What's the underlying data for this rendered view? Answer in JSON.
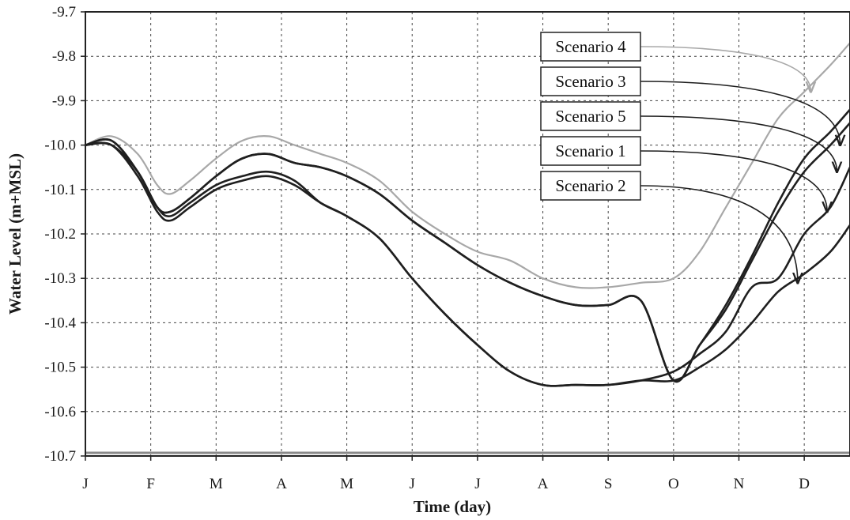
{
  "chart_data": {
    "type": "line",
    "xlabel": "Time (day)",
    "ylabel": "Water Level (m+MSL)",
    "x_categories": [
      "J",
      "F",
      "M",
      "A",
      "M",
      "J",
      "J",
      "A",
      "S",
      "O",
      "N",
      "D"
    ],
    "x_range": [
      0,
      11.7
    ],
    "ylim": [
      -10.7,
      -9.7
    ],
    "y_ticks": [
      "-9.7",
      "-9.8",
      "-9.9",
      "-10.0",
      "-10.1",
      "-10.2",
      "-10.3",
      "-10.4",
      "-10.5",
      "-10.6",
      "-10.7"
    ],
    "grid": true,
    "legend": "callout labels at top-right",
    "series": [
      {
        "name": "Scenario 4",
        "color": "#a8a8a8",
        "x": [
          0,
          0.4,
          0.8,
          1.1,
          1.3,
          1.6,
          2.0,
          2.4,
          2.8,
          3.2,
          3.6,
          4.0,
          4.5,
          5.0,
          5.5,
          6.0,
          6.5,
          7.0,
          7.5,
          8.0,
          8.5,
          9.0,
          9.4,
          9.8,
          10.2,
          10.6,
          11.0,
          11.4,
          11.7
        ],
        "y": [
          -10.0,
          -9.98,
          -10.02,
          -10.09,
          -10.11,
          -10.08,
          -10.03,
          -9.99,
          -9.98,
          -10.0,
          -10.02,
          -10.04,
          -10.08,
          -10.15,
          -10.2,
          -10.24,
          -10.26,
          -10.3,
          -10.32,
          -10.32,
          -10.31,
          -10.3,
          -10.24,
          -10.14,
          -10.04,
          -9.94,
          -9.88,
          -9.82,
          -9.77
        ]
      },
      {
        "name": "Scenario 3",
        "color": "#1f1f1f",
        "x": [
          0,
          0.4,
          0.8,
          1.1,
          1.3,
          1.6,
          2.0,
          2.4,
          2.8,
          3.2,
          3.6,
          4.0,
          4.5,
          5.0,
          5.5,
          6.0,
          6.5,
          7.0,
          7.5,
          8.0,
          8.5,
          9.0,
          9.4,
          9.8,
          10.2,
          10.6,
          11.0,
          11.4,
          11.7
        ],
        "y": [
          -10.0,
          -9.99,
          -10.06,
          -10.14,
          -10.15,
          -10.12,
          -10.07,
          -10.03,
          -10.02,
          -10.04,
          -10.05,
          -10.07,
          -10.11,
          -10.17,
          -10.22,
          -10.27,
          -10.31,
          -10.34,
          -10.36,
          -10.36,
          -10.35,
          -10.53,
          -10.45,
          -10.36,
          -10.25,
          -10.13,
          -10.03,
          -9.97,
          -9.92
        ]
      },
      {
        "name": "Scenario 5",
        "color": "#1f1f1f",
        "x": [
          0,
          0.4,
          0.8,
          1.1,
          1.3,
          1.6,
          2.0,
          2.4,
          2.8,
          3.2,
          3.6,
          4.0,
          4.5,
          5.0,
          5.5,
          6.0,
          6.5,
          7.0,
          7.5,
          8.0,
          8.5,
          9.0,
          9.4,
          9.8,
          10.2,
          10.6,
          11.0,
          11.4,
          11.7
        ],
        "y": [
          -10.0,
          -9.99,
          -10.06,
          -10.14,
          -10.15,
          -10.12,
          -10.07,
          -10.03,
          -10.02,
          -10.04,
          -10.05,
          -10.07,
          -10.11,
          -10.17,
          -10.22,
          -10.27,
          -10.31,
          -10.34,
          -10.36,
          -10.36,
          -10.35,
          -10.53,
          -10.45,
          -10.37,
          -10.26,
          -10.15,
          -10.06,
          -10.0,
          -9.95
        ]
      },
      {
        "name": "Scenario 1",
        "color": "#1f1f1f",
        "x": [
          0,
          0.4,
          0.8,
          1.1,
          1.3,
          1.6,
          2.0,
          2.4,
          2.8,
          3.2,
          3.6,
          4.0,
          4.5,
          5.0,
          5.5,
          6.0,
          6.5,
          7.0,
          7.5,
          8.0,
          8.5,
          9.0,
          9.4,
          9.8,
          10.2,
          10.6,
          11.0,
          11.4,
          11.7
        ],
        "y": [
          -10.0,
          -10.0,
          -10.06,
          -10.14,
          -10.16,
          -10.13,
          -10.09,
          -10.07,
          -10.06,
          -10.08,
          -10.13,
          -10.16,
          -10.21,
          -10.3,
          -10.38,
          -10.45,
          -10.51,
          -10.54,
          -10.54,
          -10.54,
          -10.53,
          -10.51,
          -10.47,
          -10.42,
          -10.32,
          -10.3,
          -10.2,
          -10.14,
          -10.05
        ]
      },
      {
        "name": "Scenario 2",
        "color": "#1f1f1f",
        "x": [
          0,
          0.4,
          0.8,
          1.1,
          1.3,
          1.6,
          2.0,
          2.4,
          2.8,
          3.2,
          3.6,
          4.0,
          4.5,
          5.0,
          5.5,
          6.0,
          6.5,
          7.0,
          7.5,
          8.0,
          8.5,
          9.0,
          9.4,
          9.8,
          10.2,
          10.6,
          11.0,
          11.4,
          11.7
        ],
        "y": [
          -10.0,
          -10.0,
          -10.07,
          -10.15,
          -10.17,
          -10.14,
          -10.1,
          -10.08,
          -10.07,
          -10.09,
          -10.13,
          -10.16,
          -10.21,
          -10.3,
          -10.38,
          -10.45,
          -10.51,
          -10.54,
          -10.54,
          -10.54,
          -10.53,
          -10.53,
          -10.5,
          -10.46,
          -10.4,
          -10.33,
          -10.29,
          -10.24,
          -10.18
        ]
      }
    ],
    "annotations": [
      {
        "text": "Scenario 4",
        "color": "#a8a8a8",
        "target_x": 11.1,
        "target_y": -9.88
      },
      {
        "text": "Scenario 3",
        "color": "#1f1f1f",
        "target_x": 11.55,
        "target_y": -10.0
      },
      {
        "text": "Scenario 5",
        "color": "#1f1f1f",
        "target_x": 11.5,
        "target_y": -10.06
      },
      {
        "text": "Scenario 1",
        "color": "#1f1f1f",
        "target_x": 11.35,
        "target_y": -10.15
      },
      {
        "text": "Scenario 2",
        "color": "#1f1f1f",
        "target_x": 10.9,
        "target_y": -10.31
      }
    ]
  }
}
